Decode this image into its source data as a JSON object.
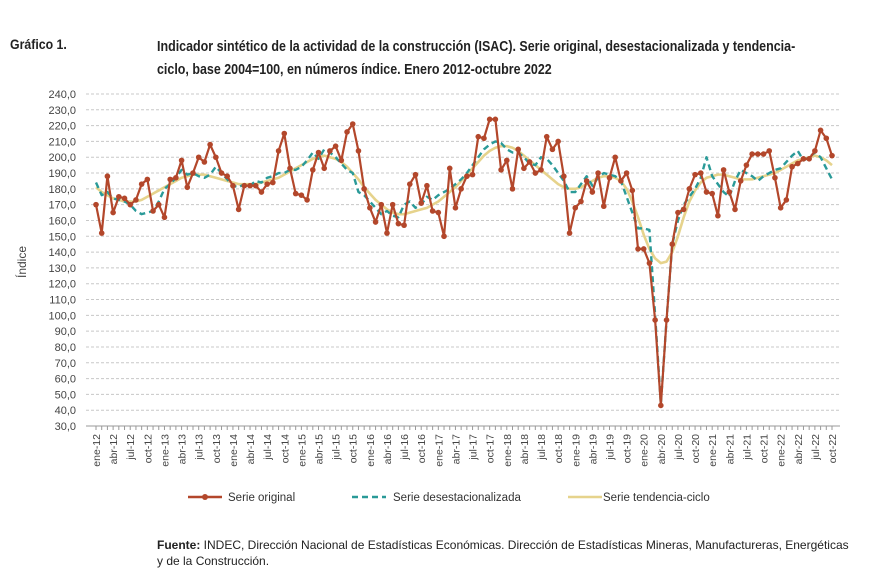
{
  "figure_label": "Gráfico 1.",
  "title": "Indicador sintético de la actividad de la construcción (ISAC). Serie original, desestacionalizada y tendencia-ciclo, base 2004=100, en números índice. Enero 2012-octubre 2022",
  "source_label": "Fuente:",
  "source_text": " INDEC, Dirección Nacional de Estadísticas Económicas. Dirección de Estadísticas Mineras, Manufactureras, Energéticas y de la Construcción.",
  "chart_data": {
    "type": "line",
    "ylabel": "Índice",
    "xlabel": "",
    "ylim": [
      30,
      240
    ],
    "ytick_step": 10,
    "grid": true,
    "legend_position": "bottom",
    "x_tick_labels": [
      "ene-12",
      "abr-12",
      "jul-12",
      "oct-12",
      "ene-13",
      "abr-13",
      "jul-13",
      "oct-13",
      "ene-14",
      "abr-14",
      "jul-14",
      "oct-14",
      "ene-15",
      "abr-15",
      "jul-15",
      "oct-15",
      "ene-16",
      "abr-16",
      "jul-16",
      "oct-16",
      "ene-17",
      "abr-17",
      "jul-17",
      "oct-17",
      "ene-18",
      "abr-18",
      "jul-18",
      "oct-18",
      "ene-19",
      "abr-19",
      "jul-19",
      "oct-19",
      "ene-20",
      "abr-20",
      "jul-20",
      "oct-20",
      "ene-21",
      "abr-21",
      "jul-21",
      "oct-21",
      "ene-22",
      "abr-22",
      "jul-22",
      "oct-22"
    ],
    "x_start": "ene-12",
    "x_end": "oct-22",
    "frequency": "monthly",
    "series": [
      {
        "name": "Serie original",
        "color": "#b3472b",
        "style": "line-marker",
        "values": [
          170,
          152,
          188,
          165,
          175,
          174,
          170,
          173,
          183,
          186,
          166,
          170,
          162,
          186,
          187,
          198,
          181,
          190,
          200,
          197,
          208,
          200,
          190,
          188,
          182,
          167,
          182,
          182,
          182,
          178,
          183,
          184,
          204,
          215,
          193,
          177,
          176,
          173,
          192,
          203,
          193,
          204,
          207,
          198,
          216,
          221,
          204,
          180,
          168,
          159,
          170,
          152,
          170,
          158,
          157,
          183,
          189,
          171,
          182,
          166,
          165,
          150,
          193,
          168,
          180,
          188,
          189,
          213,
          212,
          224,
          224,
          192,
          198,
          180,
          205,
          193,
          197,
          190,
          192,
          213,
          205,
          210,
          188,
          152,
          168,
          172,
          185,
          178,
          190,
          169,
          187,
          200,
          185,
          190,
          179,
          142,
          142,
          133,
          97,
          43,
          97,
          145,
          165,
          167,
          180,
          189,
          190,
          178,
          177,
          163,
          192,
          178,
          167,
          185,
          195,
          202,
          202,
          202,
          204,
          187,
          168,
          173,
          194,
          196,
          199,
          199,
          204,
          217,
          212,
          201
        ]
      },
      {
        "name": "Serie desestacionalizada",
        "color": "#2a9a98",
        "style": "dashed",
        "values": [
          184,
          176,
          178,
          174,
          173,
          172,
          170,
          166,
          164,
          165,
          166,
          172,
          180,
          183,
          187,
          192,
          189,
          190,
          188,
          187,
          189,
          194,
          190,
          186,
          182,
          181,
          183,
          182,
          185,
          184,
          187,
          188,
          190,
          190,
          192,
          192,
          194,
          198,
          203,
          199,
          205,
          203,
          200,
          196,
          192,
          190,
          178,
          176,
          172,
          168,
          164,
          166,
          163,
          162,
          170,
          172,
          168,
          170,
          175,
          173,
          176,
          178,
          180,
          183,
          186,
          190,
          195,
          200,
          205,
          208,
          210,
          209,
          205,
          203,
          203,
          200,
          196,
          195,
          200,
          199,
          195,
          190,
          185,
          178,
          178,
          183,
          188,
          182,
          187,
          190,
          189,
          188,
          185,
          175,
          165,
          155,
          155,
          154,
          100,
          44,
          97,
          145,
          160,
          170,
          175,
          180,
          187,
          200,
          188,
          183,
          178,
          175,
          185,
          192,
          190,
          188,
          185,
          188,
          190,
          192,
          193,
          197,
          201,
          204,
          198,
          200,
          203,
          200,
          193,
          186
        ]
      },
      {
        "name": "Serie tendencia-ciclo",
        "color": "#e6d38c",
        "style": "smooth",
        "values": [
          181,
          178,
          176,
          174,
          173,
          172,
          172,
          172,
          173,
          175,
          177,
          179,
          181,
          183,
          185,
          187,
          188,
          189,
          189,
          189,
          188,
          187,
          186,
          185,
          184,
          183,
          183,
          183,
          183,
          184,
          185,
          186,
          187,
          189,
          191,
          193,
          195,
          197,
          199,
          200,
          201,
          200,
          199,
          197,
          194,
          190,
          186,
          181,
          177,
          173,
          170,
          167,
          165,
          164,
          164,
          165,
          166,
          167,
          168,
          170,
          172,
          175,
          178,
          181,
          185,
          189,
          193,
          197,
          201,
          204,
          206,
          207,
          207,
          206,
          204,
          201,
          198,
          195,
          192,
          189,
          186,
          183,
          181,
          180,
          180,
          181,
          183,
          185,
          187,
          188,
          188,
          187,
          185,
          180,
          172,
          162,
          151,
          142,
          136,
          133,
          134,
          140,
          150,
          162,
          172,
          179,
          184,
          187,
          188,
          189,
          189,
          188,
          187,
          186,
          186,
          186,
          187,
          188,
          189,
          190,
          192,
          194,
          196,
          198,
          199,
          200,
          201,
          200,
          198,
          195
        ]
      }
    ]
  }
}
